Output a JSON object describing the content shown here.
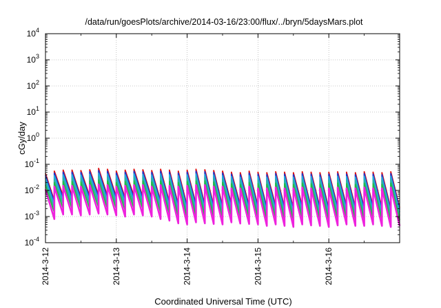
{
  "chart_data": {
    "type": "line",
    "title": "/data/run/goesPlots/archive/2014-03-16/23:00/flux/../bryn/5daysMars.plot",
    "xlabel": "Coordinated Universal Time (UTC)",
    "ylabel": "cGy/day",
    "yscale": "log",
    "ylim": [
      0.0001,
      10000
    ],
    "y_ticks": [
      {
        "base": "10",
        "exp": "-4",
        "value": 0.0001
      },
      {
        "base": "10",
        "exp": "-3",
        "value": 0.001
      },
      {
        "base": "10",
        "exp": "-2",
        "value": 0.01
      },
      {
        "base": "10",
        "exp": "-1",
        "value": 0.1
      },
      {
        "base": "10",
        "exp": "0",
        "value": 1
      },
      {
        "base": "10",
        "exp": "1",
        "value": 10
      },
      {
        "base": "10",
        "exp": "2",
        "value": 100
      },
      {
        "base": "10",
        "exp": "3",
        "value": 1000
      },
      {
        "base": "10",
        "exp": "4",
        "value": 10000
      }
    ],
    "xlim": [
      "2014-03-12T00:00",
      "2014-03-17T00:00"
    ],
    "x_ticks": [
      "2014-3-12",
      "2014-3-13",
      "2014-3-14",
      "2014-3-15",
      "2014-3-16"
    ],
    "grid": true,
    "sawtooth_period_hours": 3,
    "x": [
      "2014-03-12T00:00",
      "2014-03-12T03:00",
      "2014-03-12T06:00",
      "2014-03-12T09:00",
      "2014-03-12T12:00",
      "2014-03-12T15:00",
      "2014-03-12T18:00",
      "2014-03-12T21:00",
      "2014-03-13T00:00",
      "2014-03-13T03:00",
      "2014-03-13T06:00",
      "2014-03-13T09:00",
      "2014-03-13T12:00",
      "2014-03-13T15:00",
      "2014-03-13T18:00",
      "2014-03-13T21:00",
      "2014-03-14T00:00",
      "2014-03-14T03:00",
      "2014-03-14T06:00",
      "2014-03-14T09:00",
      "2014-03-14T12:00",
      "2014-03-14T15:00",
      "2014-03-14T18:00",
      "2014-03-14T21:00",
      "2014-03-15T00:00",
      "2014-03-15T03:00",
      "2014-03-15T06:00",
      "2014-03-15T09:00",
      "2014-03-15T12:00",
      "2014-03-15T15:00",
      "2014-03-15T18:00",
      "2014-03-15T21:00",
      "2014-03-16T00:00",
      "2014-03-16T03:00",
      "2014-03-16T06:00",
      "2014-03-16T09:00",
      "2014-03-16T12:00",
      "2014-03-16T15:00",
      "2014-03-16T18:00",
      "2014-03-16T21:00"
    ],
    "series": [
      {
        "color": "#dd1111",
        "peak": [
          0.045,
          0.055,
          0.06,
          0.06,
          0.058,
          0.062,
          0.07,
          0.065,
          0.055,
          0.06,
          0.065,
          0.062,
          0.058,
          0.065,
          0.06,
          0.055,
          0.06,
          0.065,
          0.062,
          0.058,
          0.055,
          0.05,
          0.048,
          0.055,
          0.05,
          0.048,
          0.052,
          0.05,
          0.048,
          0.052,
          0.05,
          0.048,
          0.05,
          0.052,
          0.05,
          0.048,
          0.052,
          0.05,
          0.048,
          0.052
        ],
        "trough": [
          0.004,
          0.006,
          0.006,
          0.0055,
          0.006,
          0.0065,
          0.006,
          0.0055,
          0.005,
          0.006,
          0.0055,
          0.005,
          0.004,
          0.0035,
          0.0028,
          0.0025,
          0.003,
          0.0028,
          0.0026,
          0.0025,
          0.003,
          0.0027,
          0.0026,
          0.0025,
          0.0022,
          0.0025,
          0.0022,
          0.002,
          0.0025,
          0.0023,
          0.0022,
          0.002,
          0.0023,
          0.0025,
          0.0022,
          0.0022,
          0.0025,
          0.0022,
          0.002,
          0.0022
        ]
      },
      {
        "color": "#2233cc",
        "peak": [
          0.038,
          0.046,
          0.05,
          0.05,
          0.049,
          0.052,
          0.058,
          0.054,
          0.046,
          0.05,
          0.054,
          0.052,
          0.049,
          0.054,
          0.05,
          0.046,
          0.05,
          0.054,
          0.052,
          0.049,
          0.046,
          0.042,
          0.04,
          0.046,
          0.042,
          0.04,
          0.044,
          0.042,
          0.04,
          0.044,
          0.042,
          0.04,
          0.042,
          0.044,
          0.042,
          0.04,
          0.044,
          0.042,
          0.04,
          0.044
        ],
        "trough": [
          0.0035,
          0.005,
          0.005,
          0.0048,
          0.005,
          0.0055,
          0.005,
          0.0047,
          0.0043,
          0.005,
          0.0047,
          0.0043,
          0.0035,
          0.003,
          0.0024,
          0.0021,
          0.0026,
          0.0024,
          0.0022,
          0.0021,
          0.0026,
          0.0023,
          0.0022,
          0.0021,
          0.0019,
          0.0021,
          0.0019,
          0.0017,
          0.0021,
          0.002,
          0.0019,
          0.0017,
          0.002,
          0.0021,
          0.0019,
          0.0019,
          0.0021,
          0.0019,
          0.0017,
          0.0019
        ]
      },
      {
        "color": "#22aadd",
        "peak": [
          0.03,
          0.037,
          0.04,
          0.04,
          0.039,
          0.041,
          0.046,
          0.043,
          0.037,
          0.04,
          0.043,
          0.041,
          0.039,
          0.043,
          0.04,
          0.037,
          0.04,
          0.043,
          0.041,
          0.039,
          0.037,
          0.034,
          0.032,
          0.037,
          0.034,
          0.032,
          0.035,
          0.034,
          0.032,
          0.035,
          0.034,
          0.032,
          0.034,
          0.035,
          0.034,
          0.032,
          0.035,
          0.034,
          0.032,
          0.035
        ],
        "trough": [
          0.0028,
          0.004,
          0.004,
          0.0038,
          0.004,
          0.0044,
          0.004,
          0.0037,
          0.0034,
          0.004,
          0.0037,
          0.0034,
          0.0028,
          0.0024,
          0.0019,
          0.0017,
          0.002,
          0.0019,
          0.0018,
          0.0017,
          0.002,
          0.0018,
          0.0018,
          0.0017,
          0.0015,
          0.0017,
          0.0015,
          0.0014,
          0.0017,
          0.0016,
          0.0015,
          0.0014,
          0.0016,
          0.0017,
          0.0015,
          0.0015,
          0.0017,
          0.0015,
          0.0014,
          0.0015
        ]
      },
      {
        "color": "#2bb3a3",
        "peak": [
          0.022,
          0.027,
          0.03,
          0.03,
          0.029,
          0.031,
          0.034,
          0.032,
          0.027,
          0.03,
          0.032,
          0.031,
          0.029,
          0.032,
          0.03,
          0.027,
          0.03,
          0.032,
          0.031,
          0.029,
          0.027,
          0.025,
          0.024,
          0.027,
          0.025,
          0.024,
          0.026,
          0.025,
          0.024,
          0.026,
          0.025,
          0.024,
          0.025,
          0.026,
          0.025,
          0.024,
          0.026,
          0.025,
          0.024,
          0.026
        ],
        "trough": [
          0.002,
          0.0029,
          0.0029,
          0.0027,
          0.0029,
          0.0032,
          0.0029,
          0.0027,
          0.0025,
          0.0029,
          0.0027,
          0.0025,
          0.002,
          0.0017,
          0.0014,
          0.0012,
          0.0015,
          0.0014,
          0.0013,
          0.0012,
          0.0015,
          0.0013,
          0.0013,
          0.0012,
          0.0011,
          0.0012,
          0.0011,
          0.001,
          0.0012,
          0.0011,
          0.0011,
          0.001,
          0.0011,
          0.0012,
          0.0011,
          0.0011,
          0.0012,
          0.0011,
          0.001,
          0.0011
        ]
      },
      {
        "color": "#22bb44",
        "peak": [
          0.016,
          0.02,
          0.022,
          0.022,
          0.021,
          0.023,
          0.025,
          0.023,
          0.02,
          0.022,
          0.023,
          0.023,
          0.021,
          0.023,
          0.022,
          0.02,
          0.022,
          0.023,
          0.023,
          0.021,
          0.02,
          0.018,
          0.017,
          0.02,
          0.018,
          0.017,
          0.019,
          0.018,
          0.017,
          0.019,
          0.018,
          0.017,
          0.018,
          0.019,
          0.018,
          0.017,
          0.019,
          0.018,
          0.017,
          0.019
        ],
        "trough": [
          0.0014,
          0.002,
          0.002,
          0.0019,
          0.002,
          0.0022,
          0.002,
          0.0019,
          0.0017,
          0.002,
          0.0019,
          0.0017,
          0.0014,
          0.0012,
          0.00095,
          0.00085,
          0.001,
          0.00095,
          0.0009,
          0.00085,
          0.001,
          0.0009,
          0.0009,
          0.00085,
          0.00075,
          0.00085,
          0.00075,
          0.0007,
          0.00085,
          0.0008,
          0.00075,
          0.0007,
          0.0008,
          0.00085,
          0.00075,
          0.00075,
          0.00085,
          0.00075,
          0.0007,
          0.00075
        ]
      },
      {
        "color": "#ee22dd",
        "peak": [
          0.011,
          0.014,
          0.015,
          0.015,
          0.014,
          0.016,
          0.017,
          0.016,
          0.014,
          0.015,
          0.016,
          0.016,
          0.014,
          0.016,
          0.015,
          0.014,
          0.015,
          0.016,
          0.016,
          0.014,
          0.014,
          0.012,
          0.012,
          0.014,
          0.012,
          0.012,
          0.013,
          0.012,
          0.012,
          0.013,
          0.012,
          0.012,
          0.012,
          0.013,
          0.012,
          0.012,
          0.013,
          0.012,
          0.012,
          0.013
        ],
        "trough": [
          0.0008,
          0.0012,
          0.0012,
          0.0011,
          0.0012,
          0.0013,
          0.0012,
          0.0011,
          0.001,
          0.0012,
          0.0011,
          0.001,
          0.0008,
          0.0007,
          0.00055,
          0.0005,
          0.0006,
          0.00055,
          0.00052,
          0.0005,
          0.0006,
          0.00054,
          0.00052,
          0.0005,
          0.00044,
          0.0005,
          0.00044,
          0.0004,
          0.0005,
          0.00046,
          0.00044,
          0.0004,
          0.00046,
          0.0005,
          0.00044,
          0.00044,
          0.0005,
          0.00044,
          0.0004,
          0.00044
        ]
      }
    ]
  }
}
